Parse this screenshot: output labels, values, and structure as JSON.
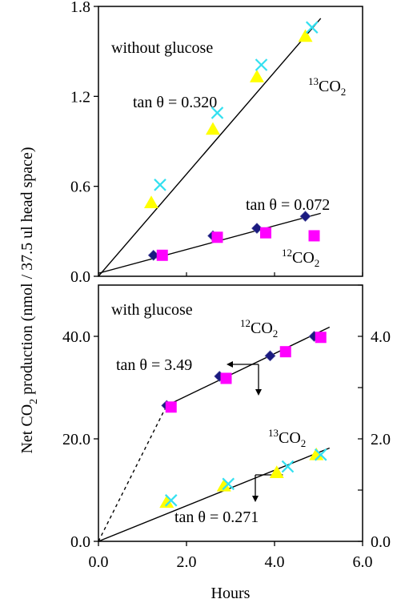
{
  "chart_data": [
    {
      "type": "scatter",
      "panel": "top",
      "annotation": "without glucose",
      "ylim": [
        0,
        1.8
      ],
      "yticks": [
        "0.0",
        "0.6",
        "1.2",
        "1.8"
      ],
      "xlim": [
        0,
        6
      ],
      "grid": false,
      "series": [
        {
          "name": "13CO2",
          "marker": "triangle",
          "color": "#ffff00",
          "x": [
            1.2,
            2.6,
            3.6,
            4.7
          ],
          "y": [
            0.49,
            0.98,
            1.33,
            1.6
          ]
        },
        {
          "name": "13CO2",
          "marker": "x",
          "color": "#33e0f0",
          "x": [
            1.4,
            2.7,
            3.7,
            4.85
          ],
          "y": [
            0.61,
            1.09,
            1.41,
            1.66
          ]
        },
        {
          "name": "12CO2",
          "marker": "diamond",
          "color": "#1a1a80",
          "x": [
            1.25,
            2.6,
            3.6,
            4.7
          ],
          "y": [
            0.14,
            0.27,
            0.32,
            0.4
          ]
        },
        {
          "name": "12CO2",
          "marker": "square",
          "color": "#ff00ff",
          "x": [
            1.45,
            2.7,
            3.8,
            4.9
          ],
          "y": [
            0.14,
            0.26,
            0.29,
            0.27
          ]
        }
      ],
      "fits": [
        {
          "slope": 0.32,
          "x": [
            0,
            5.05
          ],
          "y": [
            0,
            1.72
          ],
          "style": "solid"
        },
        {
          "slope": 0.072,
          "x": [
            0,
            5.05
          ],
          "y": [
            0.02,
            0.42
          ],
          "style": "solid"
        }
      ],
      "labels": {
        "tan1": "tan θ = 0.320",
        "tan2": "tan θ = 0.072",
        "co2_13": "CO",
        "co2_13_sup": "13",
        "co2_13_sub": "2",
        "co2_12": "CO",
        "co2_12_sup": "12",
        "co2_12_sub": "2"
      }
    },
    {
      "type": "scatter",
      "panel": "bottom",
      "annotation": "with glucose",
      "ylim_left": [
        0,
        50
      ],
      "yticks_left": [
        "0.0",
        "20.0",
        "40.0"
      ],
      "ylim_right": [
        0,
        5
      ],
      "yticks_right": [
        "0.0",
        "2.0",
        "4.0"
      ],
      "xlim": [
        0,
        6
      ],
      "xticks": [
        "0.0",
        "2.0",
        "4.0",
        "6.0"
      ],
      "xlabel": "Hours",
      "grid": false,
      "series": [
        {
          "name": "12CO2",
          "marker": "diamond",
          "color": "#1a1a80",
          "axis": "left",
          "x": [
            1.55,
            2.75,
            3.9,
            4.9
          ],
          "y": [
            26.5,
            32.2,
            36.2,
            40.0
          ]
        },
        {
          "name": "12CO2",
          "marker": "square",
          "color": "#ff00ff",
          "axis": "left",
          "x": [
            1.65,
            2.9,
            4.25,
            5.05
          ],
          "y": [
            26.2,
            31.8,
            37.0,
            39.8
          ]
        },
        {
          "name": "13CO2",
          "marker": "triangle",
          "color": "#ffff00",
          "axis": "right",
          "x": [
            1.55,
            2.85,
            4.05,
            4.95
          ],
          "y": [
            0.76,
            1.08,
            1.34,
            1.69
          ]
        },
        {
          "name": "13CO2",
          "marker": "x",
          "color": "#33e0f0",
          "axis": "right",
          "x": [
            1.65,
            2.95,
            4.3,
            5.05
          ],
          "y": [
            0.8,
            1.12,
            1.46,
            1.69
          ]
        }
      ],
      "fits": [
        {
          "slope": 3.49,
          "axis": "left",
          "x": [
            1.55,
            5.25
          ],
          "y": [
            26.5,
            41.8
          ],
          "style": "solid"
        },
        {
          "axis": "left",
          "x": [
            0,
            1.55
          ],
          "y": [
            0,
            26.5
          ],
          "style": "dashed"
        },
        {
          "slope": 0.271,
          "axis": "right",
          "x": [
            0,
            5.25
          ],
          "y": [
            0,
            1.82
          ],
          "style": "solid"
        }
      ],
      "labels": {
        "tan1": "tan θ = 3.49",
        "tan2": "tan θ = 0.271",
        "co2_12": "CO",
        "co2_12_sup": "12",
        "co2_12_sub": "2",
        "co2_13": "CO",
        "co2_13_sup": "13",
        "co2_13_sub": "2"
      }
    }
  ],
  "ylabel": {
    "pre": "Net CO",
    "sub": "2",
    "post": " production (nmol / 37.5 ul head space)"
  }
}
